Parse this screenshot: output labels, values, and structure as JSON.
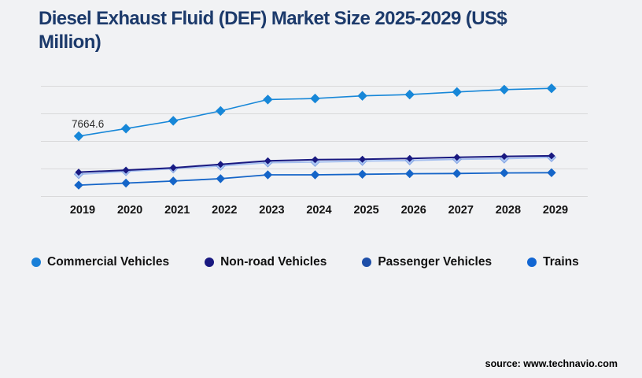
{
  "page": {
    "title_line1": "Diesel Exhaust Fluid (DEF) Market Size 2025-2029 (US$",
    "title_line2": "Million)",
    "title_color": "#1c3a6b",
    "background_color": "#f1f2f4",
    "source_text": "source: www.technavio.com"
  },
  "chart_data": {
    "type": "line",
    "title": "Diesel Exhaust Fluid (DEF) Market Size 2025-2029 (US$ Million)",
    "xlabel": "",
    "ylabel": "",
    "x": [
      2019,
      2020,
      2021,
      2022,
      2023,
      2024,
      2025,
      2026,
      2027,
      2028,
      2029
    ],
    "ylim": [
      0,
      14000
    ],
    "gridline_values": [
      0,
      3500,
      7000,
      10500,
      14000
    ],
    "grid": "horizontal",
    "gridline_color": "#d9d9da",
    "legend_position": "bottom",
    "tick_label_color": "#111111",
    "annotation": {
      "series": "Commercial Vehicles",
      "x": 2019,
      "value": 7664.6,
      "label": "7664.6",
      "color": "#2d2d2d"
    },
    "series": [
      {
        "name": "Commercial Vehicles",
        "legend_color": "#1a80d8",
        "line_color": "#1787d8",
        "marker_fill": "#1787d8",
        "marker_stroke": "#1787d8",
        "marker_shape": "diamond",
        "marker_r": 5.5,
        "line_width": 1.6,
        "draw_order": 1,
        "values": [
          7664.6,
          8620,
          9610,
          10860,
          12310,
          12440,
          12780,
          12940,
          13270,
          13570,
          13730
        ]
      },
      {
        "name": "Non-road Vehicles",
        "legend_color": "#191980",
        "line_color": "#191980",
        "marker_fill": "#191980",
        "marker_stroke": "#191980",
        "marker_shape": "diamond",
        "marker_r": 3.8,
        "line_width": 2,
        "draw_order": 3,
        "values": [
          3090,
          3340,
          3640,
          4080,
          4530,
          4670,
          4730,
          4830,
          4970,
          5090,
          5160
        ]
      },
      {
        "name": "Passenger Vehicles",
        "legend_color": "#1e4fa8",
        "line_color": "#a6c0f0",
        "marker_fill": "#abc6f4",
        "marker_stroke": "#84a4e2",
        "marker_shape": "diamond",
        "marker_r": 5.5,
        "line_width": 2,
        "draw_order": 2,
        "values": [
          2820,
          3190,
          3540,
          3880,
          4300,
          4370,
          4500,
          4570,
          4730,
          4800,
          4970
        ]
      },
      {
        "name": "Trains",
        "legend_color": "#1266d2",
        "line_color": "#1565c8",
        "marker_fill": "#1565c8",
        "marker_stroke": "#1565c8",
        "marker_shape": "diamond",
        "marker_r": 5,
        "line_width": 1.8,
        "draw_order": 4,
        "values": [
          1440,
          1700,
          1960,
          2260,
          2750,
          2750,
          2820,
          2890,
          2920,
          2990,
          3020
        ]
      }
    ]
  }
}
